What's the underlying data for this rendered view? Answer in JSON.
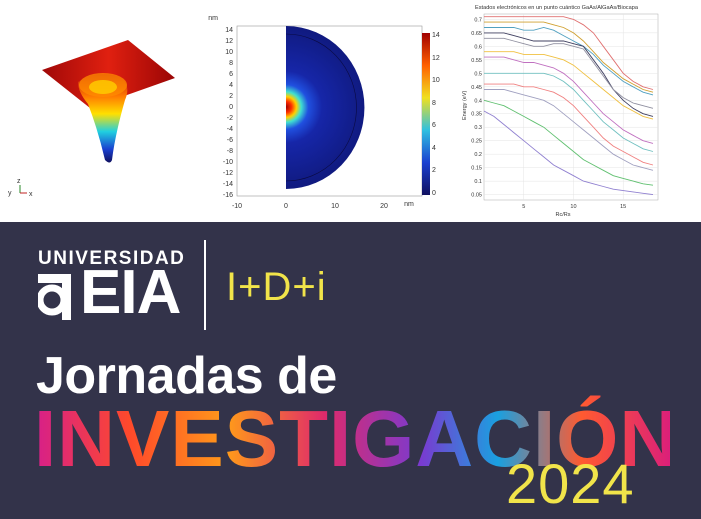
{
  "top": {
    "chart2": {
      "yaxis_unit": "nm",
      "yticks": [
        "14",
        "12",
        "10",
        "8",
        "6",
        "4",
        "2",
        "0",
        "-2",
        "-4",
        "-6",
        "-8",
        "-10",
        "-12",
        "-14",
        "-16"
      ],
      "xaxis_unit": "nm",
      "xticks": [
        "-10",
        "0",
        "10",
        "20"
      ],
      "colorbar_ticks": [
        "14",
        "12",
        "10",
        "8",
        "6",
        "4",
        "2",
        "0"
      ]
    },
    "chart3": {
      "title": "Estados electrónicos en un punto cuántico GaAs/AlGaAs/Biocapa",
      "ylabel": "Energy (eV)",
      "xlabel": "Rc/Rs",
      "yticks": [
        "0.7",
        "0.65",
        "0.6",
        "0.55",
        "0.5",
        "0.45",
        "0.4",
        "0.35",
        "0.3",
        "0.25",
        "0.2",
        "0.15",
        "0.1",
        "0.05"
      ],
      "xticks": [
        "5",
        "10",
        "15"
      ]
    },
    "axes_triad": {
      "y": "y",
      "z": "z",
      "x": "x"
    }
  },
  "chart_data": [
    {
      "type": "line",
      "title": "Estados electrónicos en un punto cuántico GaAs/AlGaAs/Biocapa",
      "xlabel": "Rc/Rs",
      "ylabel": "Energy (eV)",
      "xlim": [
        1,
        18.5
      ],
      "ylim": [
        0.03,
        0.72
      ],
      "grid": true,
      "x": [
        1,
        2,
        3,
        4,
        5,
        6,
        7,
        8,
        9,
        10,
        11,
        12,
        13,
        14,
        15,
        16,
        17,
        18
      ],
      "series": [
        {
          "color": "#e07070",
          "values": [
            0.71,
            0.71,
            0.71,
            0.71,
            0.71,
            0.71,
            0.71,
            0.71,
            0.71,
            0.7,
            0.68,
            0.65,
            0.6,
            0.55,
            0.5,
            0.47,
            0.45,
            0.44
          ]
        },
        {
          "color": "#d0a030",
          "values": [
            0.69,
            0.69,
            0.69,
            0.69,
            0.69,
            0.69,
            0.69,
            0.68,
            0.67,
            0.65,
            0.62,
            0.58,
            0.54,
            0.51,
            0.48,
            0.46,
            0.44,
            0.43
          ]
        },
        {
          "color": "#50a0c0",
          "values": [
            0.67,
            0.67,
            0.67,
            0.67,
            0.66,
            0.66,
            0.67,
            0.66,
            0.64,
            0.62,
            0.6,
            0.57,
            0.53,
            0.5,
            0.47,
            0.45,
            0.43,
            0.42
          ]
        },
        {
          "color": "#404060",
          "values": [
            0.65,
            0.65,
            0.65,
            0.64,
            0.63,
            0.62,
            0.62,
            0.62,
            0.62,
            0.61,
            0.6,
            0.55,
            0.5,
            0.44,
            0.4,
            0.37,
            0.35,
            0.34
          ]
        },
        {
          "color": "#9090a0",
          "values": [
            0.63,
            0.63,
            0.63,
            0.62,
            0.61,
            0.6,
            0.6,
            0.61,
            0.61,
            0.6,
            0.59,
            0.54,
            0.49,
            0.44,
            0.41,
            0.39,
            0.38,
            0.37
          ]
        },
        {
          "color": "#f0c040",
          "values": [
            0.58,
            0.58,
            0.58,
            0.58,
            0.57,
            0.57,
            0.57,
            0.56,
            0.55,
            0.53,
            0.5,
            0.47,
            0.44,
            0.41,
            0.38,
            0.36,
            0.34,
            0.33
          ]
        },
        {
          "color": "#c070c0",
          "values": [
            0.56,
            0.56,
            0.56,
            0.55,
            0.54,
            0.54,
            0.53,
            0.52,
            0.5,
            0.47,
            0.43,
            0.39,
            0.35,
            0.32,
            0.29,
            0.27,
            0.25,
            0.24
          ]
        },
        {
          "color": "#70c0c0",
          "values": [
            0.5,
            0.5,
            0.5,
            0.5,
            0.5,
            0.5,
            0.5,
            0.49,
            0.47,
            0.44,
            0.4,
            0.36,
            0.32,
            0.29,
            0.26,
            0.24,
            0.22,
            0.21
          ]
        },
        {
          "color": "#f08080",
          "values": [
            0.46,
            0.46,
            0.46,
            0.46,
            0.45,
            0.45,
            0.44,
            0.43,
            0.41,
            0.38,
            0.34,
            0.3,
            0.26,
            0.23,
            0.21,
            0.19,
            0.17,
            0.16
          ]
        },
        {
          "color": "#a0a0c0",
          "values": [
            0.44,
            0.44,
            0.44,
            0.43,
            0.42,
            0.41,
            0.4,
            0.38,
            0.35,
            0.32,
            0.29,
            0.26,
            0.23,
            0.2,
            0.18,
            0.16,
            0.15,
            0.14
          ]
        },
        {
          "color": "#60c070",
          "values": [
            0.4,
            0.39,
            0.38,
            0.36,
            0.34,
            0.32,
            0.3,
            0.27,
            0.24,
            0.21,
            0.18,
            0.16,
            0.14,
            0.12,
            0.11,
            0.1,
            0.09,
            0.085
          ]
        },
        {
          "color": "#9080d0",
          "values": [
            0.36,
            0.34,
            0.31,
            0.28,
            0.25,
            0.22,
            0.19,
            0.16,
            0.14,
            0.12,
            0.1,
            0.09,
            0.08,
            0.07,
            0.065,
            0.06,
            0.055,
            0.05
          ]
        }
      ]
    }
  ],
  "brand": {
    "universidad": "UNIVERSIDAD",
    "eia": "EIA",
    "idi": "I+D+i"
  },
  "event": {
    "line1": "Jornadas de",
    "line2": "INVESTIGACIÓN",
    "year": "2024"
  }
}
